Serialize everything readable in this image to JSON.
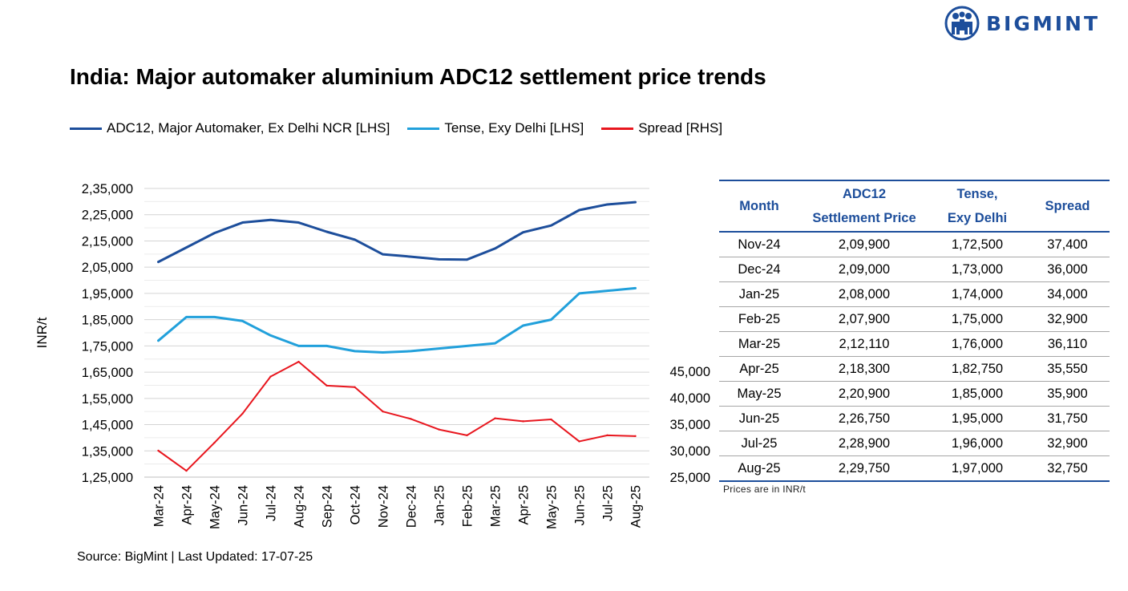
{
  "brand": {
    "name": "BIGMINT",
    "color": "#1d4e9b",
    "icon": "bigmint-people-logo-icon"
  },
  "title": "India: Major automaker aluminium ADC12 settlement price trends",
  "source": "Source: BigMint | Last Updated: 17-07-25",
  "table": {
    "headers": [
      {
        "line1": "Month",
        "line2": ""
      },
      {
        "line1": "ADC12",
        "line2": "Settlement Price"
      },
      {
        "line1": "Tense,",
        "line2": "Exy Delhi"
      },
      {
        "line1": "Spread",
        "line2": ""
      }
    ],
    "rows": [
      [
        "Nov-24",
        "2,09,900",
        "1,72,500",
        "37,400"
      ],
      [
        "Dec-24",
        "2,09,000",
        "1,73,000",
        "36,000"
      ],
      [
        "Jan-25",
        "2,08,000",
        "1,74,000",
        "34,000"
      ],
      [
        "Feb-25",
        "2,07,900",
        "1,75,000",
        "32,900"
      ],
      [
        "Mar-25",
        "2,12,110",
        "1,76,000",
        "36,110"
      ],
      [
        "Apr-25",
        "2,18,300",
        "1,82,750",
        "35,550"
      ],
      [
        "May-25",
        "2,20,900",
        "1,85,000",
        "35,900"
      ],
      [
        "Jun-25",
        "2,26,750",
        "1,95,000",
        "31,750"
      ],
      [
        "Jul-25",
        "2,28,900",
        "1,96,000",
        "32,900"
      ],
      [
        "Aug-25",
        "2,29,750",
        "1,97,000",
        "32,750"
      ]
    ],
    "note": "Prices are in INR/t"
  },
  "chart_data": {
    "type": "line",
    "title": "",
    "xlabel": "",
    "ylabel": "INR/t",
    "categories": [
      "Mar-24",
      "Apr-24",
      "May-24",
      "Jun-24",
      "Jul-24",
      "Aug-24",
      "Sep-24",
      "Oct-24",
      "Nov-24",
      "Dec-24",
      "Jan-25",
      "Feb-25",
      "Mar-25",
      "Apr-25",
      "May-25",
      "Jun-25",
      "Jul-25",
      "Aug-25"
    ],
    "y_left": {
      "min": 125000,
      "max": 235000,
      "step": 10000,
      "ticks": [
        "1,25,000",
        "1,35,000",
        "1,45,000",
        "1,55,000",
        "1,65,000",
        "1,75,000",
        "1,85,000",
        "1,95,000",
        "2,05,000",
        "2,15,000",
        "2,25,000",
        "2,35,000"
      ]
    },
    "y_right": {
      "min": 25000,
      "max": 45000,
      "step": 5000,
      "ticks": [
        "25,000",
        "30,000",
        "35,000",
        "40,000",
        "45,000"
      ]
    },
    "grid": true,
    "legend_position": "top",
    "series": [
      {
        "name": "ADC12, Major Automaker, Ex Delhi NCR [LHS]",
        "axis": "left",
        "color": "#1d4e9b",
        "values": [
          207000,
          212500,
          218000,
          222000,
          223000,
          222000,
          218500,
          215500,
          209900,
          209000,
          208000,
          207900,
          212110,
          218300,
          220900,
          226750,
          228900,
          229750
        ]
      },
      {
        "name": "Tense, Exy Delhi [LHS]",
        "axis": "left",
        "color": "#21a0db",
        "values": [
          177000,
          186000,
          186000,
          184500,
          179000,
          175000,
          175000,
          173000,
          172500,
          173000,
          174000,
          175000,
          176000,
          182750,
          185000,
          195000,
          196000,
          197000
        ]
      },
      {
        "name": "Spread [RHS]",
        "axis": "right",
        "color": "#e8161e",
        "values": [
          30000,
          26200,
          31500,
          37000,
          44000,
          46800,
          42300,
          42000,
          37400,
          36000,
          34000,
          32900,
          36110,
          35550,
          35900,
          31750,
          32900,
          32750
        ]
      }
    ]
  }
}
